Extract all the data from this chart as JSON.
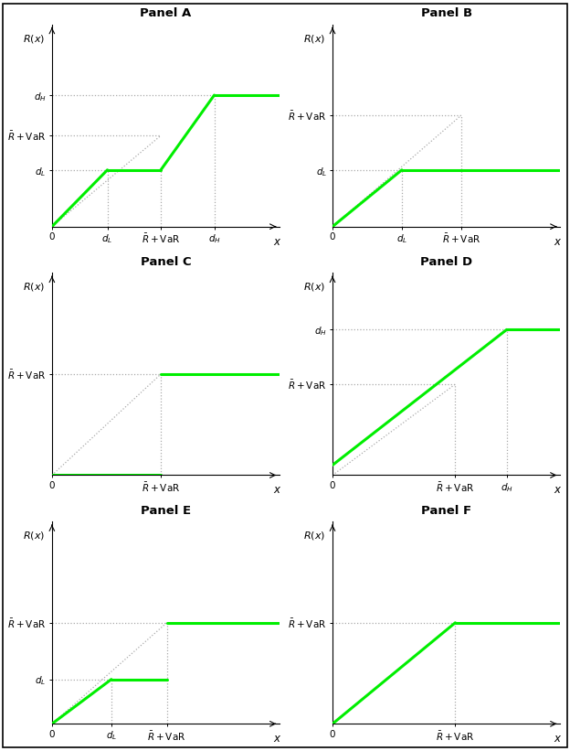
{
  "panels": [
    "Panel A",
    "Panel B",
    "Panel C",
    "Panel D",
    "Panel E",
    "Panel F"
  ],
  "green_color": "#00EE00",
  "dashed_color": "#aaaaaa",
  "line_width": 2.2,
  "dashed_lw": 0.9,
  "panel_A": {
    "xlim": [
      0,
      1.15
    ],
    "ylim": [
      0,
      1.0
    ],
    "xticks": [
      0.0,
      0.28,
      0.55,
      0.82
    ],
    "xtick_labels": [
      "0",
      "$d_L$",
      "$\\bar{R}+$VaR",
      "$d_H$"
    ],
    "yticks": [
      0.28,
      0.45,
      0.65
    ],
    "ytick_labels": [
      "$d_L$",
      "$\\bar{R}+$VaR",
      "$d_H$"
    ],
    "segments": [
      {
        "x": [
          0,
          0.28
        ],
        "y": [
          0,
          0.28
        ]
      },
      {
        "x": [
          0.28,
          0.55
        ],
        "y": [
          0.28,
          0.28
        ]
      },
      {
        "x": [
          0.55,
          0.82
        ],
        "y": [
          0.28,
          0.65
        ]
      },
      {
        "x": [
          0.82,
          1.15
        ],
        "y": [
          0.65,
          0.65
        ]
      }
    ],
    "ref_line": {
      "x": [
        0,
        0.55
      ],
      "y": [
        0,
        0.45
      ]
    },
    "dashed_lines": [
      {
        "x": [
          0.28,
          0.28
        ],
        "y": [
          0,
          0.28
        ]
      },
      {
        "x": [
          0.55,
          0.55
        ],
        "y": [
          0,
          0.28
        ]
      },
      {
        "x": [
          0.82,
          0.82
        ],
        "y": [
          0,
          0.65
        ]
      },
      {
        "x": [
          0,
          0.28
        ],
        "y": [
          0.28,
          0.28
        ]
      },
      {
        "x": [
          0,
          0.55
        ],
        "y": [
          0.45,
          0.45
        ]
      },
      {
        "x": [
          0,
          0.82
        ],
        "y": [
          0.65,
          0.65
        ]
      }
    ]
  },
  "panel_B": {
    "xlim": [
      0,
      1.15
    ],
    "ylim": [
      0,
      1.0
    ],
    "xticks": [
      0.0,
      0.35,
      0.65
    ],
    "xtick_labels": [
      "0",
      "$d_L$",
      "$\\bar{R}+$VaR"
    ],
    "yticks": [
      0.28,
      0.55
    ],
    "ytick_labels": [
      "$d_L$",
      "$\\bar{R}+$VaR"
    ],
    "segments": [
      {
        "x": [
          0,
          0.35
        ],
        "y": [
          0,
          0.28
        ]
      },
      {
        "x": [
          0.35,
          1.15
        ],
        "y": [
          0.28,
          0.28
        ]
      }
    ],
    "ref_line": {
      "x": [
        0,
        0.65
      ],
      "y": [
        0,
        0.55
      ]
    },
    "dashed_lines": [
      {
        "x": [
          0.35,
          0.35
        ],
        "y": [
          0,
          0.28
        ]
      },
      {
        "x": [
          0.65,
          0.65
        ],
        "y": [
          0,
          0.55
        ]
      },
      {
        "x": [
          0,
          0.35
        ],
        "y": [
          0.28,
          0.28
        ]
      },
      {
        "x": [
          0,
          0.65
        ],
        "y": [
          0.55,
          0.55
        ]
      }
    ]
  },
  "panel_C": {
    "xlim": [
      0,
      1.15
    ],
    "ylim": [
      0,
      1.0
    ],
    "xticks": [
      0.0,
      0.55
    ],
    "xtick_labels": [
      "0",
      "$\\bar{R}+$VaR"
    ],
    "yticks": [
      0.5
    ],
    "ytick_labels": [
      "$\\bar{R}+$VaR"
    ],
    "segments": [
      {
        "x": [
          0,
          0.55
        ],
        "y": [
          0,
          0
        ]
      },
      {
        "x": [
          0.55,
          1.15
        ],
        "y": [
          0.5,
          0.5
        ]
      }
    ],
    "ref_line": {
      "x": [
        0,
        0.55
      ],
      "y": [
        0,
        0.5
      ]
    },
    "dashed_lines": [
      {
        "x": [
          0.55,
          0.55
        ],
        "y": [
          0,
          0.5
        ]
      },
      {
        "x": [
          0,
          0.55
        ],
        "y": [
          0.5,
          0.5
        ]
      }
    ]
  },
  "panel_D": {
    "xlim": [
      0,
      1.15
    ],
    "ylim": [
      0,
      1.0
    ],
    "xticks": [
      0.0,
      0.62,
      0.88
    ],
    "xtick_labels": [
      "0",
      "$\\bar{R}+$VaR",
      "$d_H$"
    ],
    "yticks": [
      0.45,
      0.72
    ],
    "ytick_labels": [
      "$\\bar{R}+$VaR",
      "$d_H$"
    ],
    "segments": [
      {
        "x": [
          0,
          0.88
        ],
        "y": [
          0.05,
          0.72
        ]
      },
      {
        "x": [
          0.88,
          1.15
        ],
        "y": [
          0.72,
          0.72
        ]
      }
    ],
    "ref_line": {
      "x": [
        0,
        0.62
      ],
      "y": [
        0,
        0.45
      ]
    },
    "dashed_lines": [
      {
        "x": [
          0.62,
          0.62
        ],
        "y": [
          0,
          0.45
        ]
      },
      {
        "x": [
          0.88,
          0.88
        ],
        "y": [
          0,
          0.72
        ]
      },
      {
        "x": [
          0,
          0.62
        ],
        "y": [
          0.45,
          0.45
        ]
      },
      {
        "x": [
          0,
          0.88
        ],
        "y": [
          0.72,
          0.72
        ]
      }
    ]
  },
  "panel_E": {
    "xlim": [
      0,
      1.15
    ],
    "ylim": [
      0,
      1.0
    ],
    "xticks": [
      0.0,
      0.3,
      0.58
    ],
    "xtick_labels": [
      "0",
      "$d_L$",
      "$\\bar{R}+$VaR"
    ],
    "yticks": [
      0.22,
      0.5
    ],
    "ytick_labels": [
      "$d_L$",
      "$\\bar{R}+$VaR"
    ],
    "segments": [
      {
        "x": [
          0,
          0.3
        ],
        "y": [
          0,
          0.22
        ]
      },
      {
        "x": [
          0.3,
          0.58
        ],
        "y": [
          0.22,
          0.22
        ]
      },
      {
        "x": [
          0.58,
          1.15
        ],
        "y": [
          0.5,
          0.5
        ]
      }
    ],
    "ref_line": {
      "x": [
        0,
        0.58
      ],
      "y": [
        0,
        0.5
      ]
    },
    "dashed_lines": [
      {
        "x": [
          0.3,
          0.3
        ],
        "y": [
          0,
          0.22
        ]
      },
      {
        "x": [
          0.58,
          0.58
        ],
        "y": [
          0,
          0.5
        ]
      },
      {
        "x": [
          0,
          0.3
        ],
        "y": [
          0.22,
          0.22
        ]
      },
      {
        "x": [
          0,
          0.58
        ],
        "y": [
          0.5,
          0.5
        ]
      }
    ]
  },
  "panel_F": {
    "xlim": [
      0,
      1.15
    ],
    "ylim": [
      0,
      1.0
    ],
    "xticks": [
      0.0,
      0.62
    ],
    "xtick_labels": [
      "0",
      "$\\bar{R}+$VaR"
    ],
    "yticks": [
      0.5
    ],
    "ytick_labels": [
      "$\\bar{R}+$VaR"
    ],
    "segments": [
      {
        "x": [
          0,
          0.62
        ],
        "y": [
          0,
          0.5
        ]
      },
      {
        "x": [
          0.62,
          1.15
        ],
        "y": [
          0.5,
          0.5
        ]
      }
    ],
    "ref_line": null,
    "dashed_lines": [
      {
        "x": [
          0.62,
          0.62
        ],
        "y": [
          0,
          0.5
        ]
      },
      {
        "x": [
          0,
          0.62
        ],
        "y": [
          0.5,
          0.5
        ]
      }
    ]
  }
}
